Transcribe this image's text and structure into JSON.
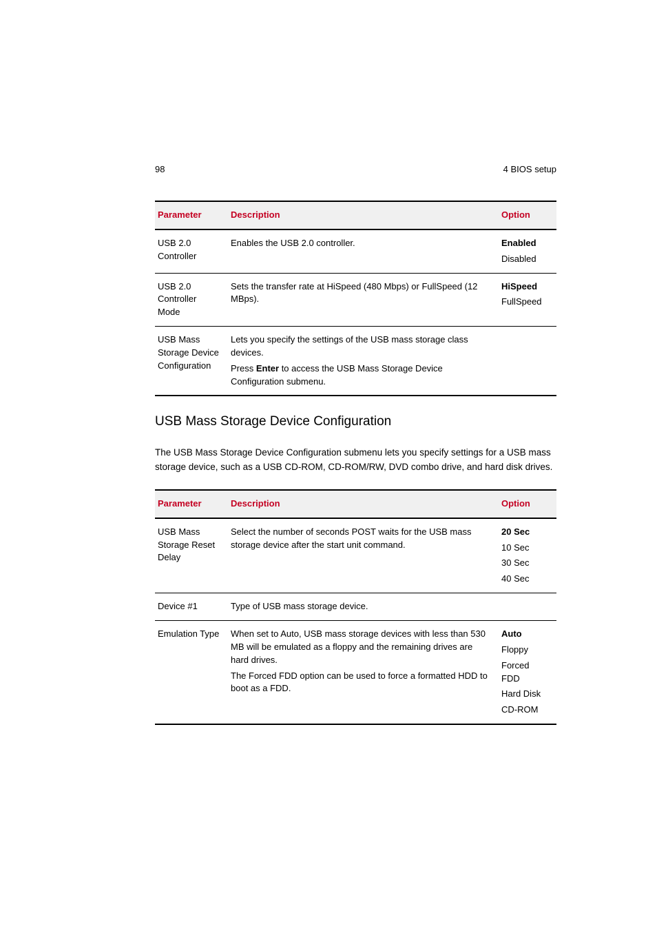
{
  "page": {
    "number": "98",
    "section": "4 BIOS setup"
  },
  "table1": {
    "headers": {
      "param": "Parameter",
      "desc": "Description",
      "opt": "Option"
    },
    "rows": [
      {
        "param": "USB 2.0 Controller",
        "desc1": "Enables the USB 2.0 controller.",
        "opt_bold": "Enabled",
        "opt_rest": "Disabled"
      },
      {
        "param": "USB 2.0 Controller Mode",
        "desc1": "Sets the transfer rate at HiSpeed (480 Mbps) or FullSpeed (12 MBps).",
        "opt_bold": "HiSpeed",
        "opt_rest": "FullSpeed"
      },
      {
        "param": "USB Mass Storage Device Configuration",
        "desc1": "Lets you specify the settings of the USB mass storage class devices.",
        "desc2_pre": "Press ",
        "desc2_bold": "Enter",
        "desc2_post": " to access the USB Mass Storage Device Configuration submenu.",
        "opt_bold": "",
        "opt_rest": ""
      }
    ]
  },
  "section_heading": "USB Mass Storage Device Configuration",
  "intro": "The USB Mass Storage Device Configuration submenu lets you specify settings for a USB mass storage device, such as a USB CD-ROM, CD-ROM/RW, DVD combo drive, and hard disk drives.",
  "table2": {
    "headers": {
      "param": "Parameter",
      "desc": "Description",
      "opt": "Option"
    },
    "rows": [
      {
        "param": "USB Mass Storage Reset Delay",
        "desc1": "Select the number of seconds POST waits for the USB mass storage device after the start unit command.",
        "opt_bold": "20 Sec",
        "opt_rest1": "10 Sec",
        "opt_rest2": "30 Sec",
        "opt_rest3": "40 Sec"
      },
      {
        "param": "Device #1",
        "desc1": "Type of USB mass storage device.",
        "opt_bold": "",
        "opt_rest1": ""
      },
      {
        "param": "Emulation Type",
        "desc1": "When set to Auto, USB mass storage devices with less than 530 MB will be emulated as a floppy and the remaining drives are hard drives.",
        "desc2": "The Forced FDD option can be used to force a formatted HDD to boot as a FDD.",
        "opt_bold": "Auto",
        "opt_rest1": "Floppy",
        "opt_rest2": "Forced FDD",
        "opt_rest3": "Hard Disk",
        "opt_rest4": "CD-ROM"
      }
    ]
  }
}
